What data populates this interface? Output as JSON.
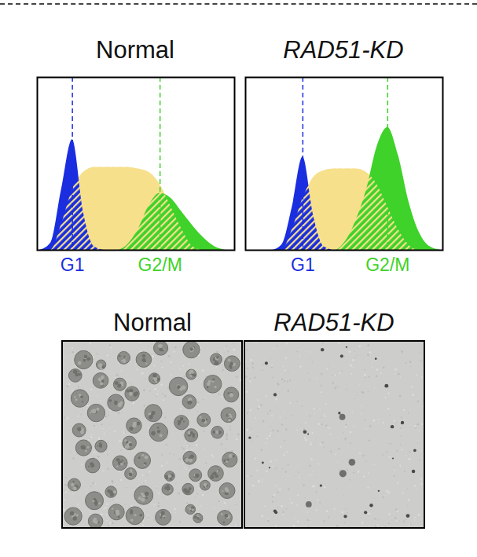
{
  "chart_data": [
    {
      "type": "area",
      "title": "Normal",
      "x": [
        1.25,
        1.5,
        1.75,
        2.0,
        2.25,
        2.5,
        2.75,
        3.0,
        3.25,
        3.5,
        3.75,
        4.0,
        4.25,
        4.5,
        4.75,
        5.0,
        5.25,
        5.5
      ],
      "xlim": [
        1.2,
        5.7
      ],
      "xticks": [
        {
          "value": 2,
          "label": "G1"
        },
        {
          "value": 4,
          "label": "G2/M"
        }
      ],
      "ylim": [
        0,
        100
      ],
      "tick_labels": "x",
      "series": [
        {
          "color": "#f7e08c",
          "values": [
            0,
            0,
            15,
            35,
            45,
            48,
            48,
            48,
            48,
            47,
            45,
            38,
            25,
            12,
            2,
            0,
            0,
            0
          ]
        },
        {
          "color": "#1a2ee0",
          "values": [
            0,
            4,
            35,
            64,
            22,
            2,
            0,
            0,
            0,
            0,
            0,
            0,
            0,
            0,
            0,
            0,
            0,
            0
          ]
        },
        {
          "color": "#3fd22a",
          "values": [
            0,
            0,
            0,
            0,
            0,
            0,
            0,
            0,
            3,
            12,
            26,
            33,
            30,
            22,
            14,
            7,
            2,
            0
          ]
        }
      ]
    },
    {
      "type": "area",
      "title": "RAD51-KD",
      "x": [
        0.75,
        1.0,
        1.25,
        1.5,
        1.75,
        2.0,
        2.25,
        2.5,
        2.75,
        3.0,
        3.25,
        3.5,
        3.75,
        4.0,
        4.25,
        4.5,
        4.75,
        5.0,
        5.25
      ],
      "xlim": [
        0.65,
        5.3
      ],
      "xticks": [
        {
          "value": 2,
          "label": "G1"
        },
        {
          "value": 4,
          "label": "G2/M"
        }
      ],
      "ylim": [
        0,
        100
      ],
      "tick_labels": "x",
      "series": [
        {
          "color": "#f7e08c",
          "values": [
            0,
            0,
            0,
            0,
            12,
            30,
            42,
            46,
            47,
            47,
            47,
            45,
            38,
            25,
            12,
            3,
            0,
            0,
            0
          ]
        },
        {
          "color": "#1a2ee0",
          "values": [
            0,
            0,
            0,
            3,
            25,
            54,
            20,
            2,
            0,
            0,
            0,
            0,
            0,
            0,
            0,
            0,
            0,
            0,
            0
          ]
        },
        {
          "color": "#3fd22a",
          "values": [
            0,
            0,
            0,
            0,
            0,
            0,
            0,
            0,
            0,
            5,
            17,
            35,
            60,
            71,
            55,
            28,
            10,
            2,
            0
          ]
        }
      ]
    }
  ],
  "images": [
    {
      "title": "Normal"
    },
    {
      "title": "RAD51-KD"
    }
  ]
}
